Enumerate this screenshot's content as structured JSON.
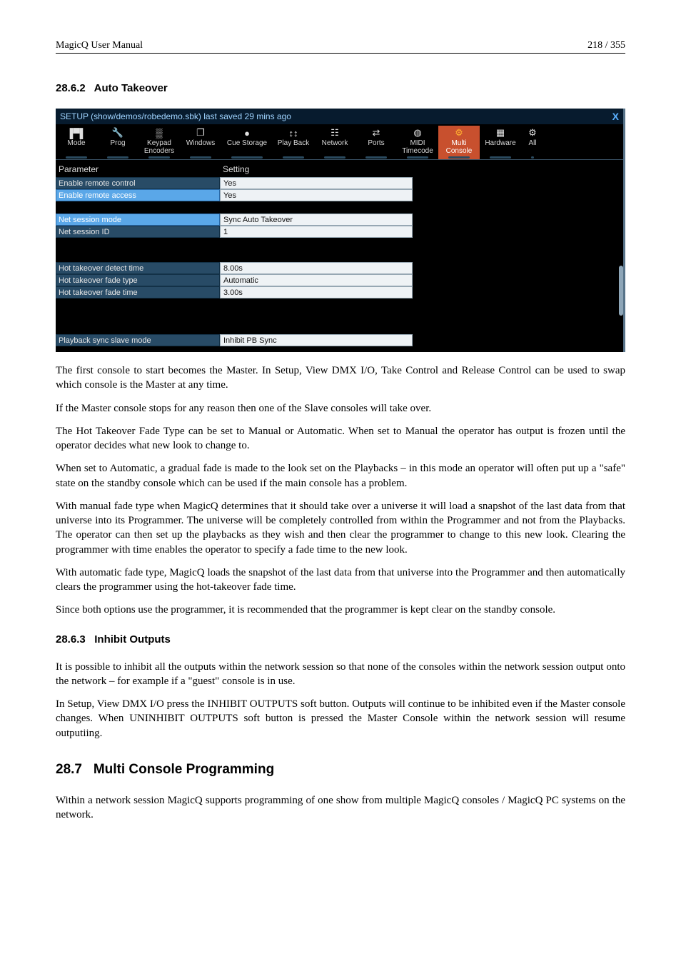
{
  "header": {
    "left": "MagicQ User Manual",
    "right": "218 / 355"
  },
  "sections": {
    "s1": {
      "num": "28.6.2",
      "title": "Auto Takeover"
    },
    "s2": {
      "num": "28.6.3",
      "title": "Inhibit Outputs"
    },
    "s3": {
      "num": "28.7",
      "title": "Multi Console Programming"
    }
  },
  "screenshot": {
    "title": "SETUP (show/demos/robedemo.sbk) last saved 29 mins ago",
    "close": "X",
    "toolbar": [
      {
        "icon": "sliders",
        "label": "Mode",
        "w": "n"
      },
      {
        "icon": "wrench",
        "label": "Prog",
        "w": "n"
      },
      {
        "icon": "grid",
        "label": "Keypad\nEncoders",
        "w": "n"
      },
      {
        "icon": "windows",
        "label": "Windows",
        "w": "n"
      },
      {
        "icon": "disk",
        "label": "Cue Storage",
        "w": "w"
      },
      {
        "icon": "faders",
        "label": "Play Back",
        "w": "n"
      },
      {
        "icon": "net",
        "label": "Network",
        "w": "n"
      },
      {
        "icon": "swap",
        "label": "Ports",
        "w": "n"
      },
      {
        "icon": "midi",
        "label": "MIDI\nTimecode",
        "w": "n"
      },
      {
        "icon": "multigear",
        "label": "Multi\nConsole",
        "w": "n",
        "active": true
      },
      {
        "icon": "chip",
        "label": "Hardware",
        "w": "n"
      },
      {
        "icon": "gear",
        "label": "All",
        "w": "x"
      }
    ],
    "col1": "Parameter",
    "col2": "Setting",
    "rows": [
      {
        "p": "Enable remote control",
        "s": "Yes"
      },
      {
        "p": "Enable remote access",
        "s": "Yes",
        "sel": true
      },
      {
        "gap": 1
      },
      {
        "p": "Net session mode",
        "s": "Sync Auto Takeover",
        "sel": true
      },
      {
        "p": "Net session ID",
        "s": "1"
      },
      {
        "gap": 2
      },
      {
        "p": "Hot takeover detect time",
        "s": "8.00s"
      },
      {
        "p": "Hot takeover fade type",
        "s": "Automatic"
      },
      {
        "p": "Hot takeover fade time",
        "s": "3.00s"
      },
      {
        "gap": 3
      },
      {
        "p": "Playback sync slave mode",
        "s": "Inhibit PB Sync"
      }
    ],
    "colors": {
      "titlebg": "#071b2e",
      "titlefg": "#a0d4ff",
      "active": "#c8502e",
      "cellbg": "#284b66",
      "selbg": "#5aa7e8",
      "valbg": "#eef2f5"
    }
  },
  "paragraphs": {
    "p1": "The first console to start becomes the Master. In Setup, View DMX I/O, Take Control and Release Control can be used to swap which console is the Master at any time.",
    "p2": "If the Master console stops for any reason then one of the Slave consoles will take over.",
    "p3": "The Hot Takeover Fade Type can be set to Manual or Automatic. When set to Manual the operator has output is frozen until the operator decides what new look to change to.",
    "p4": "When set to Automatic, a gradual fade is made to the look set on the Playbacks – in this mode an operator will often put up a \"safe\" state on the standby console which can be used if the main console has a problem.",
    "p5": "With manual fade type when MagicQ determines that it should take over a universe it will load a snapshot of the last data from that universe into its Programmer. The universe will be completely controlled from within the Programmer and not from the Playbacks. The operator can then set up the playbacks as they wish and then clear the programmer to change to this new look. Clearing the programmer with time enables the operator to specify a fade time to the new look.",
    "p6": "With automatic fade type, MagicQ loads the snapshot of the last data from that universe into the Programmer and then automatically clears the programmer using the hot-takeover fade time.",
    "p7": "Since both options use the programmer, it is recommended that the programmer is kept clear on the standby console.",
    "p8": "It is possible to inhibit all the outputs within the network session so that none of the consoles within the network session output onto the network – for example if a \"guest\" console is in use.",
    "p9": "In Setup, View DMX I/O press the INHIBIT OUTPUTS soft button. Outputs will continue to be inhibited even if the Master console changes. When UNINHIBIT OUTPUTS soft button is pressed the Master Console within the network session will resume outputiing.",
    "p10": "Within a network session MagicQ supports programming of one show from multiple MagicQ consoles / MagicQ PC systems on the network."
  }
}
